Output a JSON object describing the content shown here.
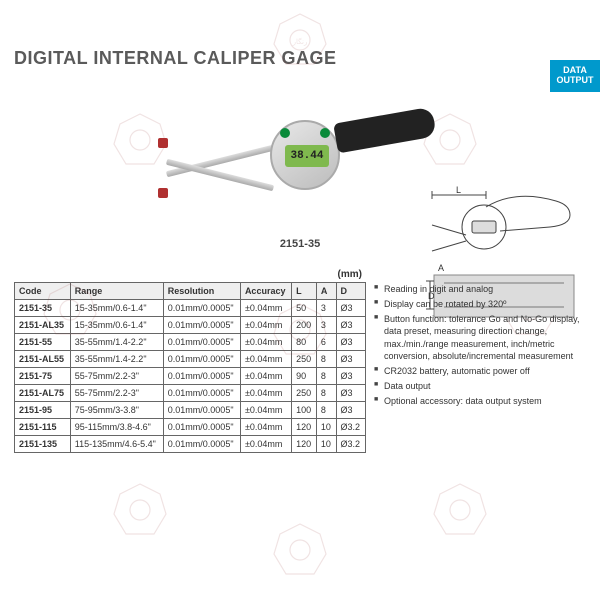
{
  "title": "DIGITAL INTERNAL CALIPER GAGE",
  "badge": {
    "line1": "DATA",
    "line2": "OUTPUT"
  },
  "product": {
    "display_value": "38.44",
    "model_label": "2151-35"
  },
  "schematic_labels": {
    "L": "L",
    "A": "A",
    "D": "D"
  },
  "table": {
    "unit_label": "(mm)",
    "columns": [
      "Code",
      "Range",
      "Resolution",
      "Accuracy",
      "L",
      "A",
      "D"
    ],
    "rows": [
      [
        "2151-35",
        "15-35mm/0.6-1.4\"",
        "0.01mm/0.0005\"",
        "±0.04mm",
        "50",
        "3",
        "Ø3"
      ],
      [
        "2151-AL35",
        "15-35mm/0.6-1.4\"",
        "0.01mm/0.0005\"",
        "±0.04mm",
        "200",
        "3",
        "Ø3"
      ],
      [
        "2151-55",
        "35-55mm/1.4-2.2\"",
        "0.01mm/0.0005\"",
        "±0.04mm",
        "80",
        "6",
        "Ø3"
      ],
      [
        "2151-AL55",
        "35-55mm/1.4-2.2\"",
        "0.01mm/0.0005\"",
        "±0.04mm",
        "250",
        "8",
        "Ø3"
      ],
      [
        "2151-75",
        "55-75mm/2.2-3\"",
        "0.01mm/0.0005\"",
        "±0.04mm",
        "90",
        "8",
        "Ø3"
      ],
      [
        "2151-AL75",
        "55-75mm/2.2-3\"",
        "0.01mm/0.0005\"",
        "±0.04mm",
        "250",
        "8",
        "Ø3"
      ],
      [
        "2151-95",
        "75-95mm/3-3.8\"",
        "0.01mm/0.0005\"",
        "±0.04mm",
        "100",
        "8",
        "Ø3"
      ],
      [
        "2151-115",
        "95-115mm/3.8-4.6\"",
        "0.01mm/0.0005\"",
        "±0.04mm",
        "120",
        "10",
        "Ø3.2"
      ],
      [
        "2151-135",
        "115-135mm/4.6-5.4\"",
        "0.01mm/0.0005\"",
        "±0.04mm",
        "120",
        "10",
        "Ø3.2"
      ]
    ]
  },
  "features": [
    "Reading in digit and analog",
    "Display can be rotated by 320º",
    "Button function: tolerance Go and No-Go display, data preset, measuring direction change, max./min./range measurement, inch/metric conversion, absolute/incremental measurement",
    "CR2032 battery, automatic power off",
    "Data output",
    "Optional accessory: data output system"
  ],
  "colors": {
    "badge_bg": "#0099cc",
    "screen_bg": "#7fb94e",
    "button_green": "#0a8a3a",
    "tip_red": "#b03030",
    "watermark": "#8a1f1f"
  }
}
